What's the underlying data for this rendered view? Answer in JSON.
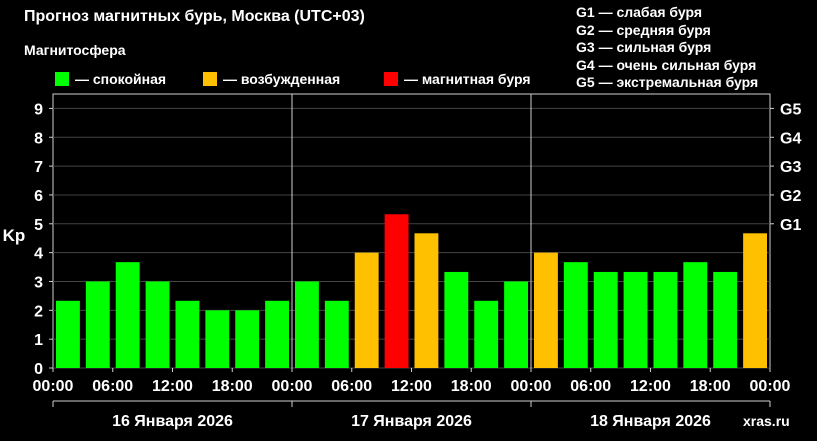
{
  "title": "Прогноз магнитных бурь, Москва (UTC+03)",
  "legend": {
    "title": "Магнитосфера",
    "items": [
      {
        "label": "— спокойная",
        "color": "#00FF00"
      },
      {
        "label": "— возбужденная",
        "color": "#FFC000"
      },
      {
        "label": "— магнитная буря",
        "color": "#FF0000"
      }
    ]
  },
  "storm_scale": [
    "G1 — слабая буря",
    "G2 — средняя буря",
    "G3 — сильная буря",
    "G4 — очень сильная буря",
    "G5 — экстремальная буря"
  ],
  "watermark": "xras.ru",
  "chart_data": {
    "type": "bar",
    "ylabel": "Kp",
    "ylim": [
      0,
      9.5
    ],
    "yticks": [
      0,
      1,
      2,
      3,
      4,
      5,
      6,
      7,
      8,
      9
    ],
    "right_axis_labels": [
      {
        "value": 5,
        "label": "G1"
      },
      {
        "value": 6,
        "label": "G2"
      },
      {
        "value": 7,
        "label": "G3"
      },
      {
        "value": 8,
        "label": "G4"
      },
      {
        "value": 9,
        "label": "G5"
      }
    ],
    "x_tick_labels": [
      "00:00",
      "06:00",
      "12:00",
      "18:00",
      "00:00",
      "06:00",
      "12:00",
      "18:00",
      "00:00",
      "06:00",
      "12:00",
      "18:00",
      "00:00"
    ],
    "days": [
      "16 Января 2026",
      "17 Января 2026",
      "18 Января 2026"
    ],
    "bars_per_day": 8,
    "values": [
      2.33,
      3.0,
      3.67,
      3.0,
      2.33,
      2.0,
      2.0,
      2.33,
      3.0,
      2.33,
      4.0,
      5.33,
      4.67,
      3.33,
      2.33,
      3.0,
      4.0,
      3.67,
      3.33,
      3.33,
      3.33,
      3.67,
      3.33,
      4.67
    ],
    "colors": [
      "#00FF00",
      "#00FF00",
      "#00FF00",
      "#00FF00",
      "#00FF00",
      "#00FF00",
      "#00FF00",
      "#00FF00",
      "#00FF00",
      "#00FF00",
      "#FFC000",
      "#FF0000",
      "#FFC000",
      "#00FF00",
      "#00FF00",
      "#00FF00",
      "#FFC000",
      "#00FF00",
      "#00FF00",
      "#00FF00",
      "#00FF00",
      "#00FF00",
      "#00FF00",
      "#FFC000"
    ],
    "grid": true
  }
}
